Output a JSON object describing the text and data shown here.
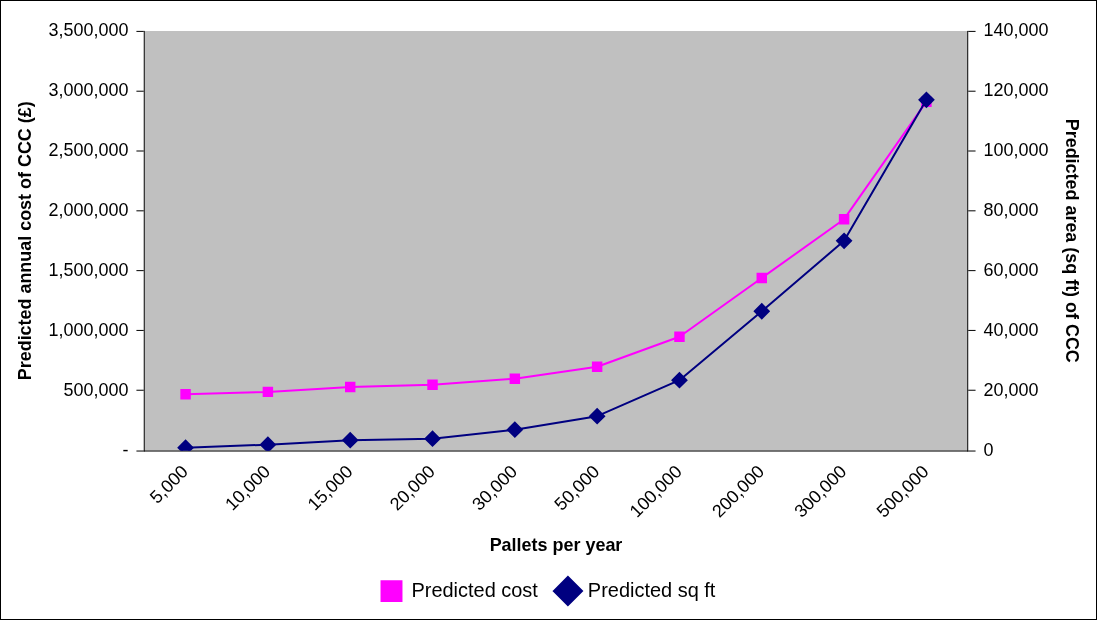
{
  "chart_data": {
    "type": "line",
    "xlabel": "Pallets per year",
    "ylabel": "Predicted annual cost of CCC (£)",
    "y2label": "Predicted area (sq ft) of CCC",
    "categories": [
      "5,000",
      "10,000",
      "15,000",
      "20,000",
      "30,000",
      "50,000",
      "100,000",
      "200,000",
      "300,000",
      "500,000"
    ],
    "series": [
      {
        "name": "Predicted cost",
        "color": "#ff00ff",
        "marker": "square",
        "values": [
          470000,
          490000,
          530000,
          550000,
          600000,
          700000,
          950000,
          1440000,
          1930000,
          2910000
        ]
      },
      {
        "name": "Predicted sq ft",
        "color": "#000080",
        "marker": "diamond",
        "axis": "y2",
        "values": [
          1000,
          2000,
          3500,
          4000,
          7000,
          11500,
          23500,
          46500,
          70000,
          117000
        ]
      }
    ],
    "ylim": [
      0,
      3500000
    ],
    "yticks": [
      {
        "value": 0,
        "label": "-"
      },
      {
        "value": 500000,
        "label": "500,000"
      },
      {
        "value": 1000000,
        "label": "1,000,000"
      },
      {
        "value": 1500000,
        "label": "1,500,000"
      },
      {
        "value": 2000000,
        "label": "2,000,000"
      },
      {
        "value": 2500000,
        "label": "2,500,000"
      },
      {
        "value": 3000000,
        "label": "3,000,000"
      },
      {
        "value": 3500000,
        "label": "3,500,000"
      }
    ],
    "y2lim": [
      0,
      140000
    ],
    "y2ticks": [
      0,
      {
        "value": 20000,
        "label": "20,000"
      },
      {
        "value": 40000,
        "label": "40,000"
      },
      {
        "value": 60000,
        "label": "60,000"
      },
      {
        "value": 80000,
        "label": "80,000"
      },
      {
        "value": 100000,
        "label": "100,000"
      },
      {
        "value": 120000,
        "label": "120,000"
      },
      {
        "value": 140000,
        "label": "140,000"
      }
    ],
    "grid": false,
    "legend": "bottom",
    "line_style": "solid"
  }
}
